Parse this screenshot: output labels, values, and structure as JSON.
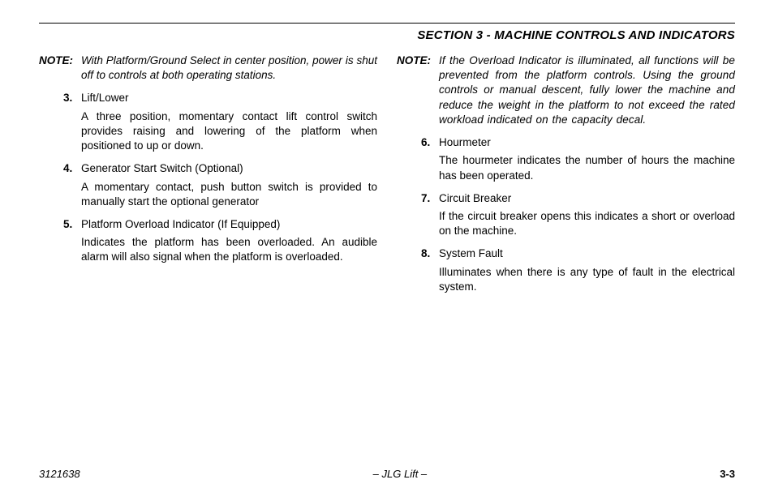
{
  "header": {
    "section_title": "SECTION 3 - MACHINE CONTROLS AND INDICATORS"
  },
  "left": {
    "note_label": "NOTE:",
    "note_body": "With Platform/Ground Select in center position, power is shut off to controls at both operating stations.",
    "items": [
      {
        "num": "3.",
        "title": "Lift/Lower",
        "desc": "A three position, momentary contact lift control switch provides raising and lowering of the platform when positioned to up or down."
      },
      {
        "num": "4.",
        "title": "Generator Start Switch (Optional)",
        "desc": "A momentary contact, push button switch is provided to manually start the optional generator"
      },
      {
        "num": "5.",
        "title": "Platform Overload Indicator (If Equipped)",
        "desc": "Indicates the platform has been overloaded. An audible alarm will also signal when the platform is overloaded."
      }
    ]
  },
  "right": {
    "note_label": "NOTE:",
    "note_body": "If the Overload Indicator is illuminated, all functions will be prevented from the platform controls. Using the ground controls or manual descent, fully lower the machine and reduce the weight in the platform to not exceed the rated workload indicated on the capacity decal.",
    "items": [
      {
        "num": "6.",
        "title": "Hourmeter",
        "desc": "The hourmeter indicates the number of hours the machine has been operated."
      },
      {
        "num": "7.",
        "title": "Circuit Breaker",
        "desc": "If the circuit breaker opens this indicates a short or overload on the machine."
      },
      {
        "num": "8.",
        "title": "System Fault",
        "desc": "Illuminates when there is any type of fault in the electrical system."
      }
    ]
  },
  "footer": {
    "docnum": "3121638",
    "center": "– JLG Lift –",
    "pagenum": "3-3"
  }
}
